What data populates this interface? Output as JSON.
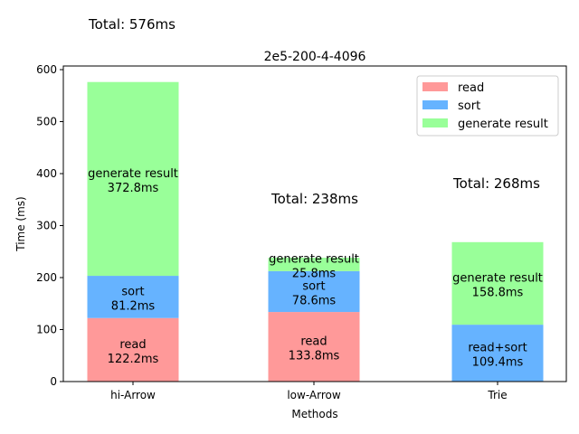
{
  "chart_data": {
    "type": "bar",
    "stacked": true,
    "title": "2e5-200-4-4096",
    "xlabel": "Methods",
    "ylabel": "Time (ms)",
    "ylim": [
      0,
      607
    ],
    "yticks": [
      0,
      100,
      200,
      300,
      400,
      500,
      600
    ],
    "grid": false,
    "legend_position": "top-right",
    "categories": [
      "hi-Arrow",
      "low-Arrow",
      "Trie"
    ],
    "series": [
      {
        "name": "read",
        "color": "#ff9999",
        "values": [
          122.2,
          133.8,
          0
        ]
      },
      {
        "name": "sort",
        "color": "#66b3ff",
        "values": [
          81.2,
          78.6,
          0
        ]
      },
      {
        "name": "generate result",
        "color": "#99ff99",
        "values": [
          372.8,
          25.8,
          158.8
        ]
      }
    ],
    "legend": [
      "read",
      "sort",
      "generate result"
    ],
    "extra_segment": {
      "category": "Trie",
      "color": "#66b3ff",
      "value": 109.4
    },
    "segment_labels": [
      {
        "category": "hi-Arrow",
        "segment": 0,
        "name": "read",
        "value": "122.2ms"
      },
      {
        "category": "hi-Arrow",
        "segment": 1,
        "name": "sort",
        "value": "81.2ms"
      },
      {
        "category": "hi-Arrow",
        "segment": 2,
        "name": "generate result",
        "value": "372.8ms"
      },
      {
        "category": "low-Arrow",
        "segment": 0,
        "name": "read",
        "value": "133.8ms"
      },
      {
        "category": "low-Arrow",
        "segment": 1,
        "name": "sort",
        "value": "78.6ms"
      },
      {
        "category": "low-Arrow",
        "segment": 2,
        "name": "generate result",
        "value": "25.8ms"
      },
      {
        "category": "Trie",
        "segment": 0,
        "name": "read+sort",
        "value": "109.4ms"
      },
      {
        "category": "Trie",
        "segment": 2,
        "name": "generate result",
        "value": "158.8ms"
      }
    ],
    "totals": [
      {
        "category": "hi-Arrow",
        "label": "Total: 576ms"
      },
      {
        "category": "low-Arrow",
        "label": "Total: 238ms"
      },
      {
        "category": "Trie",
        "label": "Total: 268ms"
      }
    ]
  }
}
